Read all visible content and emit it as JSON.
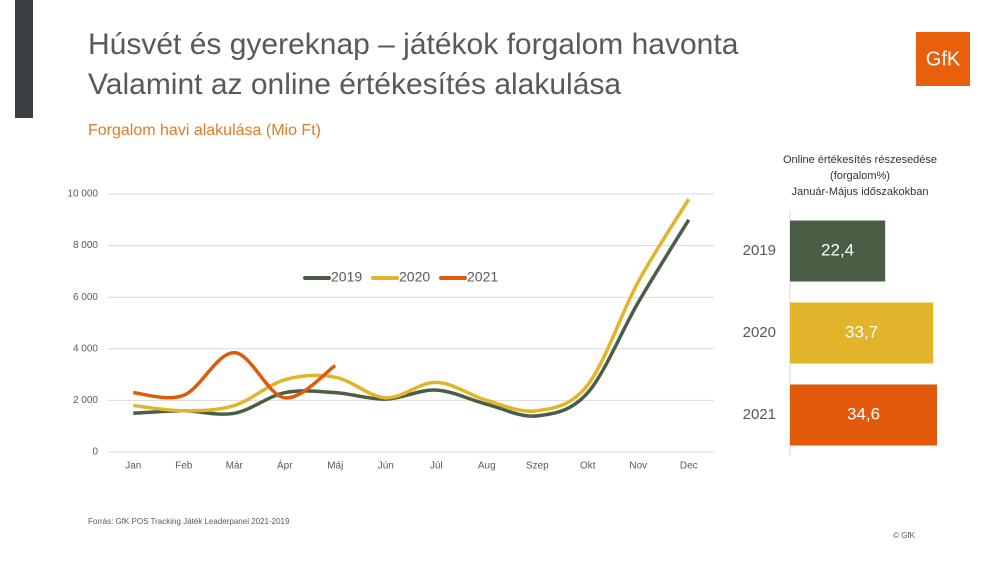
{
  "slide": {
    "title_lines": [
      "Húsvét és gyereknap – játékok forgalom havonta",
      "Valamint az online értékesítés alakulása"
    ],
    "logo": "GfK",
    "source": "Forrás: GfK POS Tracking Játék Leaderpanel 2021-2019",
    "copyright": "© GfK"
  },
  "chart_data": [
    {
      "type": "line",
      "title": "Forgalom havi alakulása (Mio Ft)",
      "categories": [
        "Jan",
        "Feb",
        "Már",
        "Ápr",
        "Máj",
        "Jún",
        "Júl",
        "Aug",
        "Szep",
        "Okt",
        "Nov",
        "Dec"
      ],
      "series": [
        {
          "name": "2019",
          "color": "#4a5e45",
          "values": [
            1500,
            1600,
            1500,
            2300,
            2300,
            2050,
            2400,
            1850,
            1400,
            2300,
            5800,
            9000
          ]
        },
        {
          "name": "2020",
          "color": "#e2b42a",
          "values": [
            1800,
            1600,
            1800,
            2800,
            2900,
            2100,
            2700,
            2000,
            1600,
            2600,
            6600,
            9800
          ]
        },
        {
          "name": "2021",
          "color": "#e05a0a",
          "values": [
            2300,
            2200,
            3850,
            2100,
            3350,
            null,
            null,
            null,
            null,
            null,
            null,
            null
          ]
        }
      ],
      "ylim": [
        0,
        10000
      ],
      "yticks": [
        0,
        {
          "value": 2000,
          "label": "2 000"
        },
        {
          "value": 4000,
          "label": "4 000"
        },
        {
          "value": 6000,
          "label": "6 000"
        },
        {
          "value": 8000,
          "label": "8 000"
        },
        {
          "value": 10000,
          "label": "10 000"
        }
      ],
      "grid": true,
      "legend": "top"
    },
    {
      "type": "hbar",
      "title": [
        "Online értékesítés részesedése",
        "(forgalom%)",
        "Január-Május időszakokban"
      ],
      "categories": [
        "2019",
        "2020",
        "2021"
      ],
      "values": [
        22.4,
        33.7,
        34.6
      ],
      "value_labels": [
        "22,4",
        "33,7",
        "34,6"
      ],
      "colors": [
        "#4a5e45",
        "#e2b42a",
        "#e05a0a"
      ],
      "xlim": [
        0,
        35
      ]
    }
  ]
}
